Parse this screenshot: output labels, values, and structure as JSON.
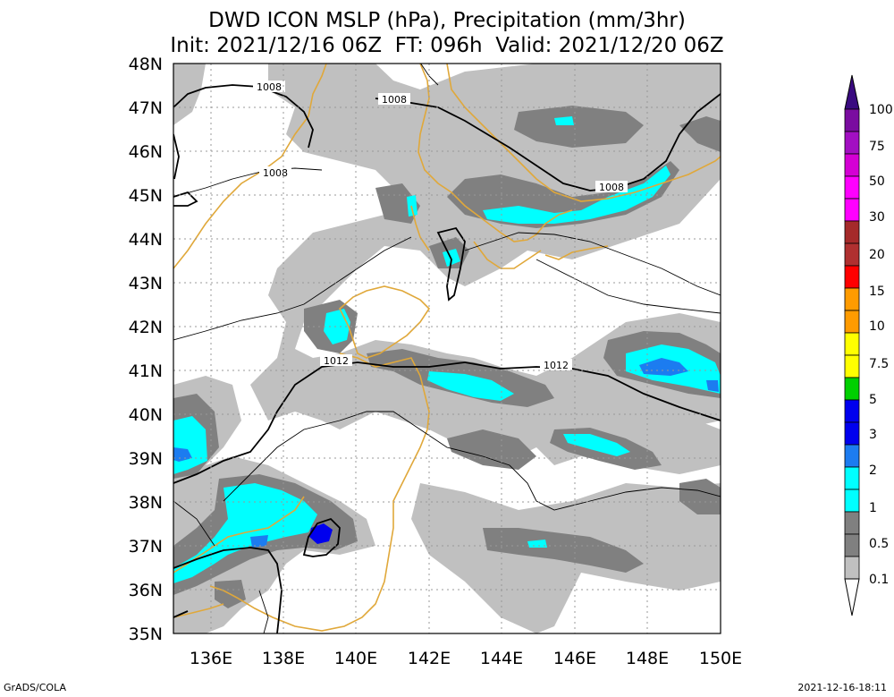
{
  "title_line1": "DWD ICON MSLP (hPa), Precipitation (mm/3hr)",
  "title_line2": "Init: 2021/12/16 06Z  FT: 096h  Valid: 2021/12/20 06Z",
  "footer_left": "GrADS/COLA",
  "footer_right": "2021-12-16-18:11",
  "map": {
    "lat_labels": [
      "48N",
      "47N",
      "46N",
      "45N",
      "44N",
      "43N",
      "42N",
      "41N",
      "40N",
      "39N",
      "38N",
      "37N",
      "36N",
      "35N"
    ],
    "lon_labels": [
      "136E",
      "138E",
      "140E",
      "142E",
      "144E",
      "146E",
      "148E",
      "150E"
    ],
    "isobar_labels": [
      "1008",
      "1008",
      "1008",
      "1008",
      "1012",
      "1012"
    ]
  },
  "colorbar": {
    "labels": [
      "100",
      "75",
      "50",
      "30",
      "20",
      "15",
      "10",
      "7.5",
      "5",
      "3",
      "2",
      "1",
      "0.5",
      "0.1"
    ],
    "colors": [
      "#7a0ca0",
      "#a20fc2",
      "#d400d4",
      "#ff00ff",
      "#a52a2a",
      "#ff0000",
      "#ff9b00",
      "#ffff00",
      "#00d000",
      "#0000ee",
      "#1c7cf0",
      "#00ffff",
      "#808080",
      "#c0c0c0"
    ]
  }
}
